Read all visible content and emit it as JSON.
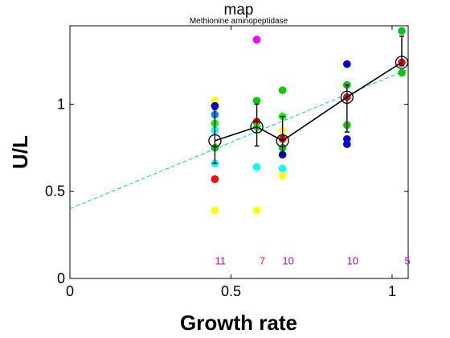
{
  "chart_data": {
    "type": "scatter",
    "title": "map",
    "subtitle": "Methionine aminopeptidase",
    "xlabel": "Growth rate",
    "ylabel": "U/L",
    "xlim": [
      0,
      1.05
    ],
    "ylim": [
      0,
      1.45
    ],
    "xticks": [
      0,
      0.5,
      1
    ],
    "xtick_labels": [
      "0",
      "0.5",
      "1"
    ],
    "yticks": [
      0,
      0.5,
      1
    ],
    "ytick_labels": [
      "0",
      "0.5",
      "1"
    ],
    "grid": false,
    "fit_line": {
      "x": [
        0,
        1.05
      ],
      "y": [
        0.4,
        1.2
      ],
      "color": "#00ccdd"
    },
    "mean_series": {
      "x": [
        0.45,
        0.58,
        0.66,
        0.86,
        1.03
      ],
      "y": [
        0.79,
        0.87,
        0.79,
        1.04,
        1.24
      ],
      "err_low": [
        0.66,
        0.76,
        0.71,
        0.84,
        1.22
      ],
      "err_high": [
        0.97,
        1.0,
        0.93,
        1.11,
        1.39
      ]
    },
    "replicates": [
      {
        "x": 0.45,
        "y": 1.02,
        "color": "#ffff00"
      },
      {
        "x": 0.45,
        "y": 0.99,
        "color": "#0000dd"
      },
      {
        "x": 0.45,
        "y": 0.94,
        "color": "#0088ff"
      },
      {
        "x": 0.45,
        "y": 0.89,
        "color": "#00ff00"
      },
      {
        "x": 0.45,
        "y": 0.85,
        "color": "#00ffff"
      },
      {
        "x": 0.45,
        "y": 0.75,
        "color": "#00cc00"
      },
      {
        "x": 0.45,
        "y": 0.66,
        "color": "#00ffff"
      },
      {
        "x": 0.45,
        "y": 0.57,
        "color": "#ff0000"
      },
      {
        "x": 0.45,
        "y": 0.39,
        "color": "#ffff00"
      },
      {
        "x": 0.58,
        "y": 1.37,
        "color": "#ff00ff"
      },
      {
        "x": 0.58,
        "y": 1.02,
        "color": "#00cc00"
      },
      {
        "x": 0.58,
        "y": 0.9,
        "color": "#ff0000"
      },
      {
        "x": 0.58,
        "y": 0.87,
        "color": "#00ff00"
      },
      {
        "x": 0.58,
        "y": 0.64,
        "color": "#00ffff"
      },
      {
        "x": 0.58,
        "y": 0.39,
        "color": "#ffff00"
      },
      {
        "x": 0.66,
        "y": 1.08,
        "color": "#00cc00"
      },
      {
        "x": 0.66,
        "y": 0.93,
        "color": "#00ff00"
      },
      {
        "x": 0.66,
        "y": 0.85,
        "color": "#ffff00"
      },
      {
        "x": 0.66,
        "y": 0.8,
        "color": "#ff0000"
      },
      {
        "x": 0.66,
        "y": 0.75,
        "color": "#00cc00"
      },
      {
        "x": 0.66,
        "y": 0.71,
        "color": "#0000dd"
      },
      {
        "x": 0.66,
        "y": 0.63,
        "color": "#00ffff"
      },
      {
        "x": 0.66,
        "y": 0.59,
        "color": "#ffff00"
      },
      {
        "x": 0.86,
        "y": 1.23,
        "color": "#0000dd"
      },
      {
        "x": 0.86,
        "y": 1.11,
        "color": "#00cc00"
      },
      {
        "x": 0.86,
        "y": 1.04,
        "color": "#ff0000"
      },
      {
        "x": 0.86,
        "y": 0.88,
        "color": "#00cc00"
      },
      {
        "x": 0.86,
        "y": 0.8,
        "color": "#0000dd"
      },
      {
        "x": 0.86,
        "y": 0.77,
        "color": "#0000dd"
      },
      {
        "x": 1.03,
        "y": 1.42,
        "color": "#00cc00"
      },
      {
        "x": 1.03,
        "y": 1.24,
        "color": "#ff0000"
      },
      {
        "x": 1.03,
        "y": 1.18,
        "color": "#00cc00"
      }
    ],
    "counts": [
      {
        "x": 0.45,
        "label": "11"
      },
      {
        "x": 0.58,
        "label": "7"
      },
      {
        "x": 0.66,
        "label": "10"
      },
      {
        "x": 0.86,
        "label": "10"
      },
      {
        "x": 1.03,
        "label": "5"
      }
    ],
    "count_color": "#cc00cc"
  }
}
